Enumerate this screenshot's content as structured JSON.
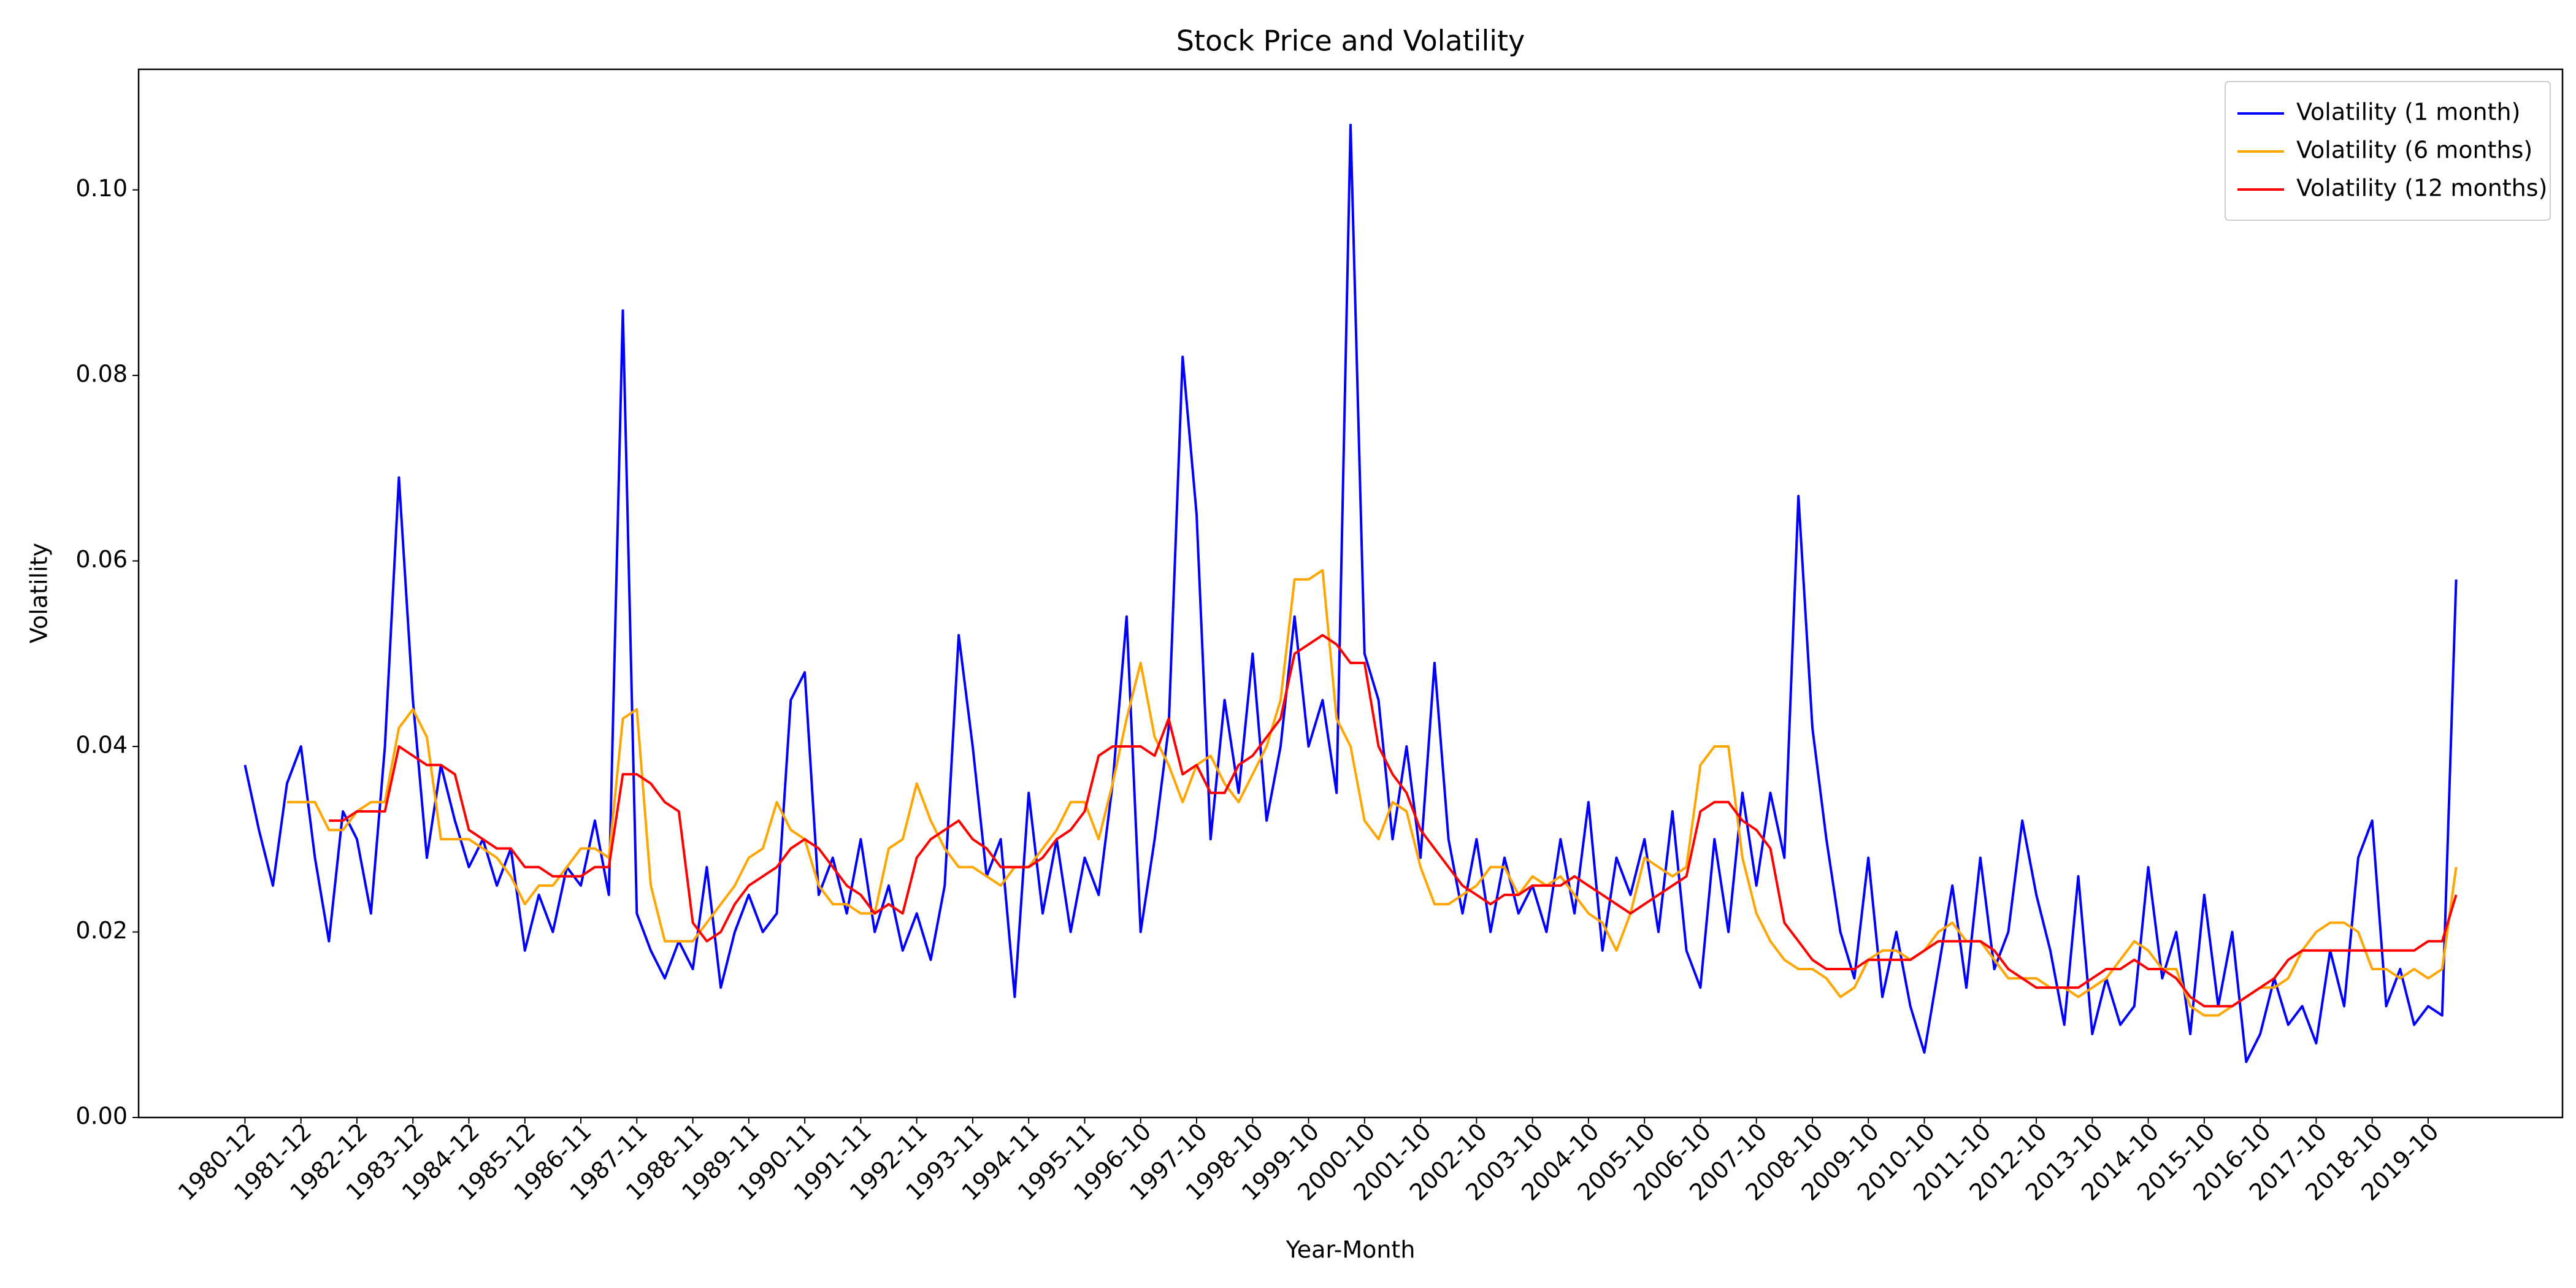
{
  "chart_data": {
    "type": "line",
    "title": "Stock Price and Volatility",
    "x_label": "Year-Month",
    "y_label": "Volatility",
    "categories": [
      "1980-12",
      null,
      null,
      null,
      "1981-12",
      null,
      null,
      null,
      "1982-12",
      null,
      null,
      null,
      "1983-12",
      null,
      null,
      null,
      "1984-12",
      null,
      null,
      null,
      "1985-12",
      null,
      null,
      null,
      "1986-11",
      null,
      null,
      null,
      "1987-11",
      null,
      null,
      null,
      "1988-11",
      null,
      null,
      null,
      "1989-11",
      null,
      null,
      null,
      "1990-11",
      null,
      null,
      null,
      "1991-11",
      null,
      null,
      null,
      "1992-11",
      null,
      null,
      null,
      "1993-11",
      null,
      null,
      null,
      "1994-11",
      null,
      null,
      null,
      "1995-11",
      null,
      null,
      null,
      "1996-10",
      null,
      null,
      null,
      "1997-10",
      null,
      null,
      null,
      "1998-10",
      null,
      null,
      null,
      "1999-10",
      null,
      null,
      null,
      "2000-10",
      null,
      null,
      null,
      "2001-10",
      null,
      null,
      null,
      "2002-10",
      null,
      null,
      null,
      "2003-10",
      null,
      null,
      null,
      "2004-10",
      null,
      null,
      null,
      "2005-10",
      null,
      null,
      null,
      "2006-10",
      null,
      null,
      null,
      "2007-10",
      null,
      null,
      null,
      "2008-10",
      null,
      null,
      null,
      "2009-10",
      null,
      null,
      null,
      "2010-10",
      null,
      null,
      null,
      "2011-10",
      null,
      null,
      null,
      "2012-10",
      null,
      null,
      null,
      "2013-10",
      null,
      null,
      null,
      "2014-10",
      null,
      null,
      null,
      "2015-10",
      null,
      null,
      null,
      "2016-10",
      null,
      null,
      null,
      "2017-10",
      null,
      null,
      null,
      "2018-10",
      null,
      null,
      null,
      "2019-10",
      null,
      null
    ],
    "series": [
      {
        "name": "Volatility (1 month)",
        "color": "#0000ff",
        "values": [
          0.038,
          0.031,
          0.025,
          0.036,
          0.04,
          0.028,
          0.019,
          0.033,
          0.03,
          0.022,
          0.04,
          0.069,
          0.045,
          0.028,
          0.038,
          0.032,
          0.027,
          0.03,
          0.025,
          0.029,
          0.018,
          0.024,
          0.02,
          0.027,
          0.025,
          0.032,
          0.024,
          0.087,
          0.022,
          0.018,
          0.015,
          0.019,
          0.016,
          0.027,
          0.014,
          0.02,
          0.024,
          0.02,
          0.022,
          0.045,
          0.048,
          0.024,
          0.028,
          0.022,
          0.03,
          0.02,
          0.025,
          0.018,
          0.022,
          0.017,
          0.025,
          0.052,
          0.04,
          0.026,
          0.03,
          0.013,
          0.035,
          0.022,
          0.03,
          0.02,
          0.028,
          0.024,
          0.036,
          0.054,
          0.02,
          0.03,
          0.042,
          0.082,
          0.065,
          0.03,
          0.045,
          0.035,
          0.05,
          0.032,
          0.04,
          0.054,
          0.04,
          0.045,
          0.035,
          0.107,
          0.05,
          0.045,
          0.03,
          0.04,
          0.028,
          0.049,
          0.03,
          0.022,
          0.03,
          0.02,
          0.028,
          0.022,
          0.025,
          0.02,
          0.03,
          0.022,
          0.034,
          0.018,
          0.028,
          0.024,
          0.03,
          0.02,
          0.033,
          0.018,
          0.014,
          0.03,
          0.02,
          0.035,
          0.025,
          0.035,
          0.028,
          0.067,
          0.042,
          0.03,
          0.02,
          0.015,
          0.028,
          0.013,
          0.02,
          0.012,
          0.007,
          0.016,
          0.025,
          0.014,
          0.028,
          0.016,
          0.02,
          0.032,
          0.024,
          0.018,
          0.01,
          0.026,
          0.009,
          0.015,
          0.01,
          0.012,
          0.027,
          0.015,
          0.02,
          0.009,
          0.024,
          0.012,
          0.02,
          0.006,
          0.009,
          0.015,
          0.01,
          0.012,
          0.008,
          0.018,
          0.012,
          0.028,
          0.032,
          0.012,
          0.016,
          0.01,
          0.012,
          0.011,
          0.058
        ]
      },
      {
        "name": "Volatility (6 months)",
        "color": "#ffa500",
        "values": [
          null,
          null,
          null,
          0.034,
          0.034,
          0.034,
          0.031,
          0.031,
          0.033,
          0.034,
          0.034,
          0.042,
          0.044,
          0.041,
          0.03,
          0.03,
          0.03,
          0.029,
          0.028,
          0.026,
          0.023,
          0.025,
          0.025,
          0.027,
          0.029,
          0.029,
          0.028,
          0.043,
          0.044,
          0.025,
          0.019,
          0.019,
          0.019,
          0.021,
          0.023,
          0.025,
          0.028,
          0.029,
          0.034,
          0.031,
          0.03,
          0.025,
          0.023,
          0.023,
          0.022,
          0.022,
          0.029,
          0.03,
          0.036,
          0.032,
          0.029,
          0.027,
          0.027,
          0.026,
          0.025,
          0.027,
          0.027,
          0.029,
          0.031,
          0.034,
          0.034,
          0.03,
          0.036,
          0.043,
          0.049,
          0.041,
          0.038,
          0.034,
          0.038,
          0.039,
          0.036,
          0.034,
          0.037,
          0.04,
          0.045,
          0.058,
          0.058,
          0.059,
          0.043,
          0.04,
          0.032,
          0.03,
          0.034,
          0.033,
          0.027,
          0.023,
          0.023,
          0.024,
          0.025,
          0.027,
          0.027,
          0.024,
          0.026,
          0.025,
          0.026,
          0.024,
          0.022,
          0.021,
          0.018,
          0.022,
          0.028,
          0.027,
          0.026,
          0.027,
          0.038,
          0.04,
          0.04,
          0.028,
          0.022,
          0.019,
          0.017,
          0.016,
          0.016,
          0.015,
          0.013,
          0.014,
          0.017,
          0.018,
          0.018,
          0.017,
          0.018,
          0.02,
          0.021,
          0.019,
          0.019,
          0.017,
          0.015,
          0.015,
          0.015,
          0.014,
          0.014,
          0.013,
          0.014,
          0.015,
          0.017,
          0.019,
          0.018,
          0.016,
          0.016,
          0.012,
          0.011,
          0.011,
          0.012,
          0.013,
          0.014,
          0.014,
          0.015,
          0.018,
          0.02,
          0.021,
          0.021,
          0.02,
          0.016,
          0.016,
          0.015,
          0.016,
          0.015,
          0.016,
          0.027
        ]
      },
      {
        "name": "Volatility (12 months)",
        "color": "#ff0000",
        "values": [
          null,
          null,
          null,
          null,
          null,
          null,
          0.032,
          0.032,
          0.033,
          0.033,
          0.033,
          0.04,
          0.039,
          0.038,
          0.038,
          0.037,
          0.031,
          0.03,
          0.029,
          0.029,
          0.027,
          0.027,
          0.026,
          0.026,
          0.026,
          0.027,
          0.027,
          0.037,
          0.037,
          0.036,
          0.034,
          0.033,
          0.021,
          0.019,
          0.02,
          0.023,
          0.025,
          0.026,
          0.027,
          0.029,
          0.03,
          0.029,
          0.027,
          0.025,
          0.024,
          0.022,
          0.023,
          0.022,
          0.028,
          0.03,
          0.031,
          0.032,
          0.03,
          0.029,
          0.027,
          0.027,
          0.027,
          0.028,
          0.03,
          0.031,
          0.033,
          0.039,
          0.04,
          0.04,
          0.04,
          0.039,
          0.043,
          0.037,
          0.038,
          0.035,
          0.035,
          0.038,
          0.039,
          0.041,
          0.043,
          0.05,
          0.051,
          0.052,
          0.051,
          0.049,
          0.049,
          0.04,
          0.037,
          0.035,
          0.031,
          0.029,
          0.027,
          0.025,
          0.024,
          0.023,
          0.024,
          0.024,
          0.025,
          0.025,
          0.025,
          0.026,
          0.025,
          0.024,
          0.023,
          0.022,
          0.023,
          0.024,
          0.025,
          0.026,
          0.033,
          0.034,
          0.034,
          0.032,
          0.031,
          0.029,
          0.021,
          0.019,
          0.017,
          0.016,
          0.016,
          0.016,
          0.017,
          0.017,
          0.017,
          0.017,
          0.018,
          0.019,
          0.019,
          0.019,
          0.019,
          0.018,
          0.016,
          0.015,
          0.014,
          0.014,
          0.014,
          0.014,
          0.015,
          0.016,
          0.016,
          0.017,
          0.016,
          0.016,
          0.015,
          0.013,
          0.012,
          0.012,
          0.012,
          0.013,
          0.014,
          0.015,
          0.017,
          0.018,
          0.018,
          0.018,
          0.018,
          0.018,
          0.018,
          0.018,
          0.018,
          0.018,
          0.019,
          0.019,
          0.024
        ]
      }
    ],
    "ylim": [
      0,
      0.113
    ],
    "yticks": [
      {
        "value": 0,
        "label": "0.00"
      },
      {
        "value": 0.02,
        "label": "0.02"
      },
      {
        "value": 0.04,
        "label": "0.04"
      },
      {
        "value": 0.06,
        "label": "0.06"
      },
      {
        "value": 0.08,
        "label": "0.08"
      },
      {
        "value": 0.1,
        "label": "0.10"
      }
    ],
    "legend": "upper right",
    "grid": false
  }
}
